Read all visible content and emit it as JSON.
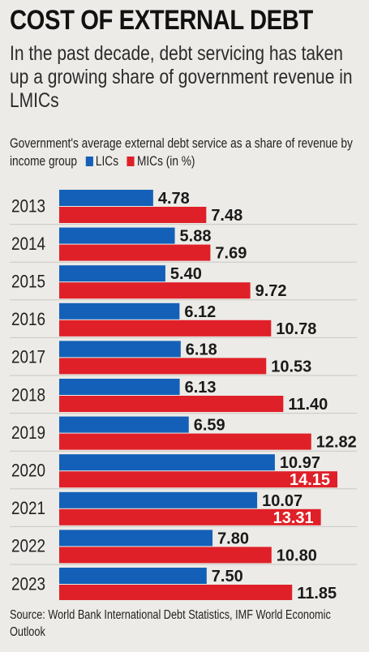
{
  "header": {
    "title": "COST OF EXTERNAL DEBT",
    "subtitle": "In the past decade, debt servicing has taken up a growing share of government revenue in LMICs"
  },
  "caption": {
    "text": "Government's average external debt service as a share of revenue by income group",
    "legend_lics": "LICs",
    "legend_mics": "MICs (in %)"
  },
  "colors": {
    "lics": "#1460b8",
    "mics": "#df2028"
  },
  "chart_data": {
    "type": "bar",
    "orientation": "horizontal",
    "categories": [
      "2013",
      "2014",
      "2015",
      "2016",
      "2017",
      "2018",
      "2019",
      "2020",
      "2021",
      "2022",
      "2023"
    ],
    "series": [
      {
        "name": "LICs",
        "values": [
          4.78,
          5.88,
          5.4,
          6.12,
          6.18,
          6.13,
          6.59,
          10.97,
          10.07,
          7.8,
          7.5
        ]
      },
      {
        "name": "MICs (in %)",
        "values": [
          7.48,
          7.69,
          9.72,
          10.78,
          10.53,
          11.4,
          12.82,
          14.15,
          13.31,
          10.8,
          11.85
        ]
      }
    ],
    "xlim": [
      0,
      14.15
    ],
    "grid": false,
    "legend": "top"
  },
  "footer": {
    "source": "Source: World Bank International Debt Statistics, IMF World Economic Outlook"
  }
}
